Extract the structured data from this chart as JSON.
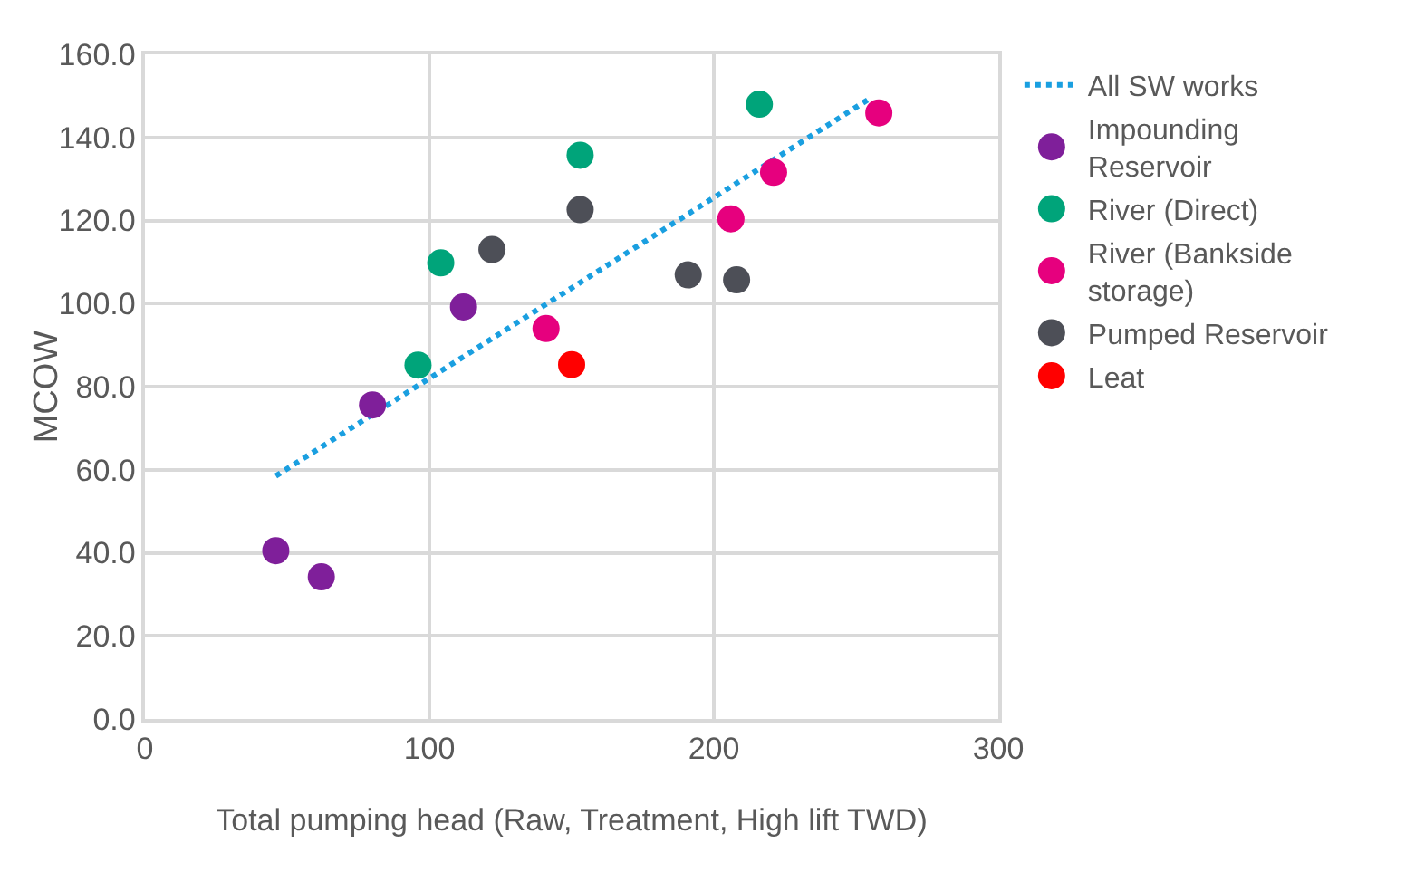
{
  "chart_data": {
    "type": "scatter",
    "xlabel": "Total pumping head (Raw, Treatment, High lift TWD)",
    "ylabel": "MCOW",
    "xlim": [
      0,
      300
    ],
    "xticks": [
      0,
      100,
      200,
      300
    ],
    "ylim": [
      0,
      160
    ],
    "yticks": [
      {
        "value": 0,
        "label": "0.0"
      },
      {
        "value": 20,
        "label": "20.0"
      },
      {
        "value": 40,
        "label": "40.0"
      },
      {
        "value": 60,
        "label": "60.0"
      },
      {
        "value": 80,
        "label": "80.0"
      },
      {
        "value": 100,
        "label": "100.0"
      },
      {
        "value": 120,
        "label": "120.0"
      },
      {
        "value": 140,
        "label": "140.0"
      },
      {
        "value": 160,
        "label": "160.0"
      }
    ],
    "grid": true,
    "legend": "right",
    "marker": "circle",
    "series": [
      {
        "name": "All SW works",
        "type": "line",
        "line_style": "dotted",
        "marker": "none",
        "color": "#1a9fe0",
        "x": [
          46,
          254
        ],
        "values": [
          58.5,
          149
        ]
      },
      {
        "name": "Impounding Reservoir",
        "color": "#7f1f9a",
        "x": [
          46,
          62,
          80,
          112
        ],
        "values": [
          40.5,
          34.2,
          75.6,
          99.2
        ]
      },
      {
        "name": "River (Direct)",
        "color": "#00a47a",
        "x": [
          96,
          104,
          153,
          216
        ],
        "values": [
          85.2,
          109.8,
          135.7,
          148
        ]
      },
      {
        "name": "River (Bankside storage)",
        "color": "#e6007e",
        "x": [
          141,
          206,
          221,
          258
        ],
        "values": [
          94,
          120.4,
          131.6,
          145.9
        ]
      },
      {
        "name": "Pumped Reservoir",
        "color": "#4d4f57",
        "x": [
          122,
          153,
          191,
          208
        ],
        "values": [
          113,
          122.6,
          106.9,
          105.7
        ]
      },
      {
        "name": "Leat",
        "color": "#ff0000",
        "x": [
          150
        ],
        "values": [
          85.3
        ]
      }
    ]
  }
}
